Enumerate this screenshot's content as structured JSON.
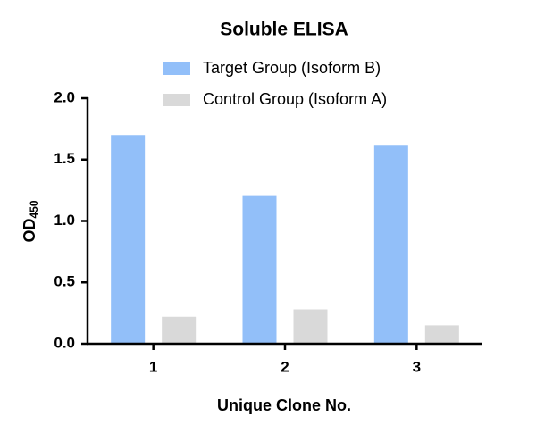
{
  "chart_data": {
    "type": "bar",
    "title": "Soluble ELISA",
    "x_label": "Unique Clone No.",
    "y_label": {
      "text": "OD",
      "subscript": "450"
    },
    "categories": [
      "1",
      "2",
      "3"
    ],
    "series": [
      {
        "name": "Target Group (Isoform B)",
        "color": "#92bff9",
        "values": [
          1.7,
          1.21,
          1.62
        ]
      },
      {
        "name": "Control Group (Isoform A)",
        "color": "#d9d9d9",
        "values": [
          0.22,
          0.28,
          0.15
        ]
      }
    ],
    "ylim": [
      0,
      2.0
    ],
    "yticks": [
      {
        "value": 0,
        "label": "0.0"
      },
      {
        "value": 0.5,
        "label": "0.5"
      },
      {
        "value": 1.0,
        "label": "1.0"
      },
      {
        "value": 1.5,
        "label": "1.5"
      },
      {
        "value": 2.0,
        "label": "2.0"
      }
    ],
    "grid": false
  }
}
